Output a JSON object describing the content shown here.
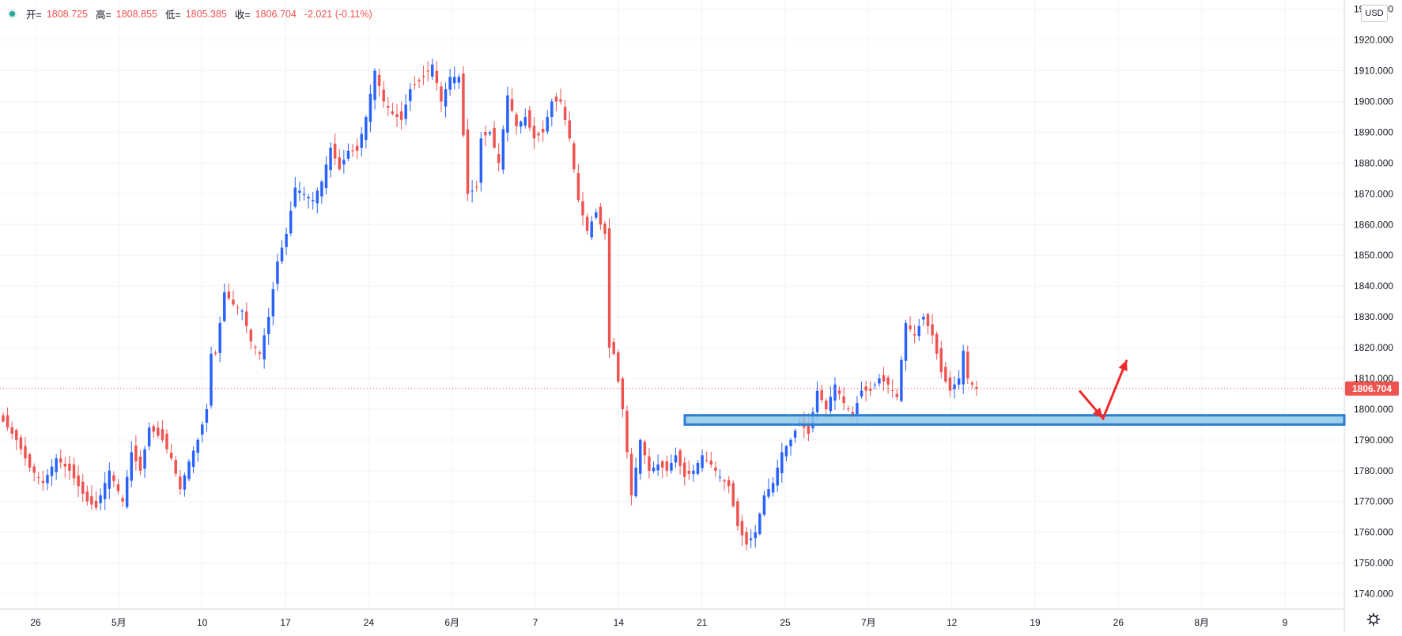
{
  "legend": {
    "open_label": "开=",
    "open": "1808.725",
    "high_label": "高=",
    "high": "1808.855",
    "low_label": "低=",
    "low": "1805.385",
    "close_label": "收=",
    "close": "1806.704",
    "change": "-2.021 (-0.11%)"
  },
  "currency": "USD",
  "last_price_label": "1806.704",
  "icons": {
    "status": "status-dot-icon",
    "settings": "gear-icon"
  },
  "colors": {
    "up": "#2962ff",
    "down": "#ef5350",
    "zone_fill": "#90c8e8",
    "zone_border": "#2a7fd4",
    "arrow": "#ef2a2a"
  },
  "chart_data": {
    "type": "candlestick",
    "ylim": [
      1735,
      1933
    ],
    "y_ticks": [
      "1740.000",
      "1750.000",
      "1760.000",
      "1770.000",
      "1780.000",
      "1790.000",
      "1800.000",
      "1810.000",
      "1820.000",
      "1830.000",
      "1840.000",
      "1850.000",
      "1860.000",
      "1870.000",
      "1880.000",
      "1890.000",
      "1900.000",
      "1910.000",
      "1920.000",
      "1930.000"
    ],
    "x_ticks": [
      "26",
      "5月",
      "10",
      "17",
      "24",
      "6月",
      "7",
      "14",
      "21",
      "25",
      "7月",
      "12",
      "19",
      "26",
      "8月",
      "9"
    ],
    "last_price": 1806.704,
    "support_zone": [
      1795,
      1798
    ],
    "projection": [
      [
        0,
        1806
      ],
      [
        1,
        1797
      ],
      [
        2,
        1816
      ]
    ],
    "close_path": [
      [
        0,
        1796
      ],
      [
        3,
        1790
      ],
      [
        6,
        1781
      ],
      [
        9,
        1776
      ],
      [
        12,
        1784
      ],
      [
        15,
        1780
      ],
      [
        19,
        1770
      ],
      [
        21,
        1768
      ],
      [
        24,
        1780
      ],
      [
        27,
        1770
      ],
      [
        29,
        1786
      ],
      [
        31,
        1780
      ],
      [
        33,
        1794
      ],
      [
        36,
        1790
      ],
      [
        38,
        1784
      ],
      [
        40,
        1774
      ],
      [
        42,
        1783
      ],
      [
        44,
        1790
      ],
      [
        46,
        1800
      ],
      [
        47,
        1818
      ],
      [
        48,
        1818
      ],
      [
        50,
        1838
      ],
      [
        52,
        1834
      ],
      [
        54,
        1832
      ],
      [
        56,
        1822
      ],
      [
        58,
        1818
      ],
      [
        60,
        1830
      ],
      [
        62,
        1848
      ],
      [
        64,
        1857
      ],
      [
        66,
        1872
      ],
      [
        68,
        1870
      ],
      [
        70,
        1868
      ],
      [
        72,
        1874
      ],
      [
        74,
        1885
      ],
      [
        76,
        1878
      ],
      [
        78,
        1884
      ],
      [
        80,
        1884
      ],
      [
        82,
        1895
      ],
      [
        84,
        1910
      ],
      [
        86,
        1900
      ],
      [
        88,
        1896
      ],
      [
        90,
        1894
      ],
      [
        92,
        1904
      ],
      [
        95,
        1908
      ],
      [
        97,
        1912
      ],
      [
        99,
        1900
      ],
      [
        101,
        1908
      ],
      [
        103,
        1908
      ],
      [
        105,
        1870
      ],
      [
        107,
        1872
      ],
      [
        108,
        1888
      ],
      [
        110,
        1890
      ],
      [
        112,
        1880
      ],
      [
        114,
        1902
      ],
      [
        116,
        1892
      ],
      [
        118,
        1895
      ],
      [
        120,
        1888
      ],
      [
        122,
        1890
      ],
      [
        124,
        1900
      ],
      [
        126,
        1900
      ],
      [
        128,
        1888
      ],
      [
        130,
        1868
      ],
      [
        132,
        1858
      ],
      [
        134,
        1864
      ],
      [
        135,
        1860
      ],
      [
        136,
        1857
      ],
      [
        137,
        1820
      ],
      [
        138,
        1818
      ],
      [
        140,
        1800
      ],
      [
        142,
        1772
      ],
      [
        144,
        1790
      ],
      [
        146,
        1780
      ],
      [
        148,
        1782
      ],
      [
        150,
        1780
      ],
      [
        152,
        1785
      ],
      [
        154,
        1778
      ],
      [
        156,
        1780
      ],
      [
        158,
        1785
      ],
      [
        160,
        1782
      ],
      [
        162,
        1778
      ],
      [
        164,
        1775
      ],
      [
        166,
        1762
      ],
      [
        168,
        1756
      ],
      [
        170,
        1760
      ],
      [
        172,
        1772
      ],
      [
        174,
        1776
      ],
      [
        176,
        1786
      ],
      [
        178,
        1790
      ],
      [
        180,
        1796
      ],
      [
        182,
        1792
      ],
      [
        184,
        1806
      ],
      [
        186,
        1800
      ],
      [
        188,
        1808
      ],
      [
        190,
        1802
      ],
      [
        192,
        1798
      ],
      [
        194,
        1806
      ],
      [
        196,
        1806
      ],
      [
        198,
        1810
      ],
      [
        200,
        1808
      ],
      [
        202,
        1804
      ],
      [
        204,
        1828
      ],
      [
        206,
        1824
      ],
      [
        208,
        1830
      ],
      [
        210,
        1824
      ],
      [
        212,
        1812
      ],
      [
        214,
        1806
      ],
      [
        216,
        1810
      ],
      [
        217,
        1819
      ],
      [
        218,
        1810
      ],
      [
        219,
        1808
      ],
      [
        220,
        1806.7
      ]
    ]
  }
}
